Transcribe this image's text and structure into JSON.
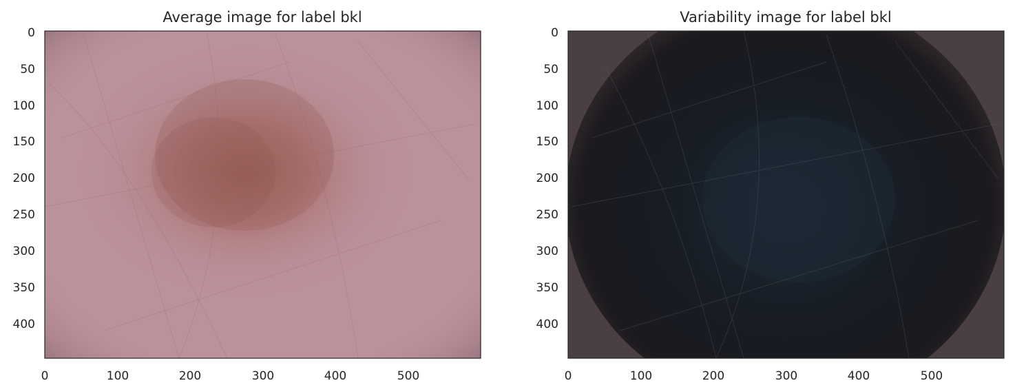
{
  "panels": [
    {
      "title": "Average image for label bkl",
      "x_ticks": [
        "0",
        "100",
        "200",
        "300",
        "400",
        "500"
      ],
      "y_ticks": [
        "0",
        "50",
        "100",
        "150",
        "200",
        "250",
        "300",
        "350",
        "400"
      ]
    },
    {
      "title": "Variability image for label bkl",
      "x_ticks": [
        "0",
        "100",
        "200",
        "300",
        "400",
        "500"
      ],
      "y_ticks": [
        "0",
        "50",
        "100",
        "150",
        "200",
        "250",
        "300",
        "350",
        "400"
      ]
    }
  ]
}
